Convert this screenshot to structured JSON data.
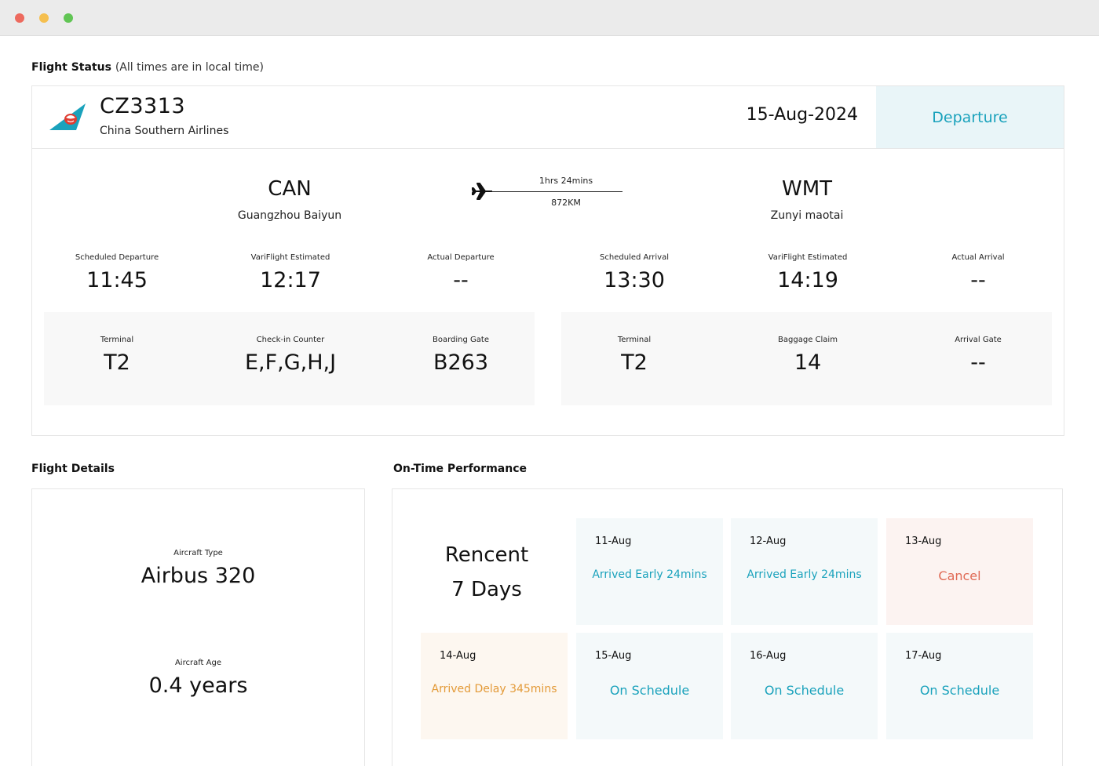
{
  "flight_status": {
    "title": "Flight Status",
    "note": "(All times are in local time)",
    "flight_number": "CZ3313",
    "airline": "China Southern Airlines",
    "date": "15-Aug-2024",
    "direction_tab": "Departure",
    "origin": {
      "code": "CAN",
      "name": "Guangzhou Baiyun"
    },
    "destination": {
      "code": "WMT",
      "name": "Zunyi maotai"
    },
    "duration": "1hrs 24mins",
    "distance": "872KM",
    "times": [
      {
        "label": "Scheduled Departure",
        "value": "11:45"
      },
      {
        "label": "VariFlight Estimated",
        "value": "12:17"
      },
      {
        "label": "Actual Departure",
        "value": "--"
      },
      {
        "label": "Scheduled Arrival",
        "value": "13:30"
      },
      {
        "label": "VariFlight Estimated",
        "value": "14:19"
      },
      {
        "label": "Actual Arrival",
        "value": "--"
      }
    ],
    "departure_info": [
      {
        "label": "Terminal",
        "value": "T2"
      },
      {
        "label": "Check-in Counter",
        "value": "E,F,G,H,J"
      },
      {
        "label": "Boarding Gate",
        "value": "B263"
      }
    ],
    "arrival_info": [
      {
        "label": "Terminal",
        "value": "T2"
      },
      {
        "label": "Baggage Claim",
        "value": "14"
      },
      {
        "label": "Arrival Gate",
        "value": "--"
      }
    ]
  },
  "flight_details": {
    "title": "Flight Details",
    "aircraft_type_label": "Aircraft Type",
    "aircraft_type": "Airbus 320",
    "aircraft_age_label": "Aircraft Age",
    "aircraft_age": "0.4 years"
  },
  "performance": {
    "title": "On-Time Performance",
    "period_line1": "Rencent",
    "period_line2": "7 Days",
    "days": [
      {
        "date": "11-Aug",
        "status": "Arrived Early 24mins"
      },
      {
        "date": "12-Aug",
        "status": "Arrived Early 24mins"
      },
      {
        "date": "13-Aug",
        "status": "Cancel"
      },
      {
        "date": "14-Aug",
        "status": "Arrived Delay 345mins"
      },
      {
        "date": "15-Aug",
        "status": "On Schedule"
      },
      {
        "date": "16-Aug",
        "status": "On Schedule"
      },
      {
        "date": "17-Aug",
        "status": "On Schedule"
      }
    ]
  },
  "colors": {
    "accent": "#1aa2bc",
    "cancel": "#e06a55",
    "delay": "#e39a38"
  }
}
